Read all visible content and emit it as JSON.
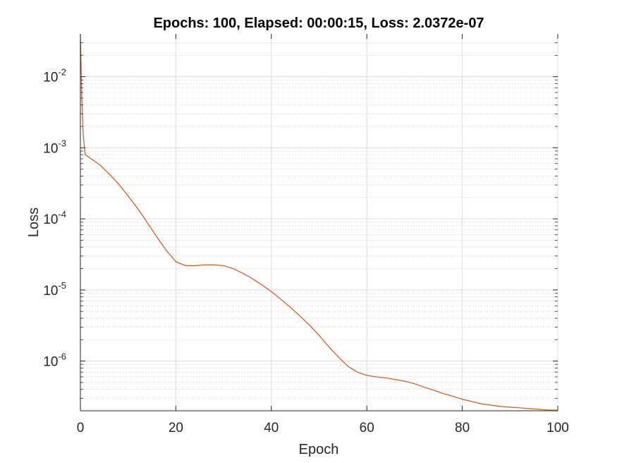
{
  "chart_data": {
    "type": "line",
    "title": "Epochs: 100, Elapsed: 00:00:15, Loss: 2.0372e-07",
    "xlabel": "Epoch",
    "ylabel": "Loss",
    "xlim": [
      0,
      100
    ],
    "ylim": [
      2e-07,
      0.04
    ],
    "yscale": "log",
    "grid": true,
    "minor_grid": true,
    "xticks": [
      0,
      20,
      40,
      60,
      80,
      100
    ],
    "xtick_labels": [
      "0",
      "20",
      "40",
      "60",
      "80",
      "100"
    ],
    "yticks": [
      1e-06,
      1e-05,
      0.0001,
      0.001,
      0.01
    ],
    "ytick_labels": [
      {
        "base": "10",
        "exp": "-6"
      },
      {
        "base": "10",
        "exp": "-5"
      },
      {
        "base": "10",
        "exp": "-4"
      },
      {
        "base": "10",
        "exp": "-3"
      },
      {
        "base": "10",
        "exp": "-2"
      }
    ],
    "series": [
      {
        "color": "#D95319",
        "x": [
          0,
          0.3,
          0.6,
          1,
          2,
          4,
          6,
          8,
          10,
          12,
          14,
          16,
          18,
          20,
          22,
          24,
          26,
          28,
          30,
          32,
          34,
          36,
          38,
          40,
          42,
          44,
          46,
          48,
          50,
          52,
          54,
          56,
          58,
          60,
          62,
          64,
          66,
          68,
          70,
          72,
          74,
          76,
          78,
          80,
          82,
          84,
          86,
          88,
          90,
          92,
          94,
          96,
          98,
          100
        ],
        "y": [
          0.04,
          0.005,
          0.0015,
          0.0008,
          0.00072,
          0.00058,
          0.00043,
          0.00031,
          0.00021,
          0.00014,
          8.9e-05,
          5.6e-05,
          3.6e-05,
          2.5e-05,
          2.2e-05,
          2.2e-05,
          2.25e-05,
          2.25e-05,
          2.2e-05,
          2e-05,
          1.72e-05,
          1.45e-05,
          1.18e-05,
          9.5e-06,
          7.4e-06,
          5.7e-06,
          4.3e-06,
          3.2e-06,
          2.3e-06,
          1.6e-06,
          1.15e-06,
          8.5e-07,
          7e-07,
          6.3e-07,
          6e-07,
          5.8e-07,
          5.5e-07,
          5.2e-07,
          4.8e-07,
          4.3e-07,
          3.9e-07,
          3.5e-07,
          3.2e-07,
          2.9e-07,
          2.7e-07,
          2.5e-07,
          2.4e-07,
          2.3e-07,
          2.25e-07,
          2.2e-07,
          2.15e-07,
          2.1e-07,
          2.05e-07,
          2.0372e-07
        ]
      }
    ]
  }
}
